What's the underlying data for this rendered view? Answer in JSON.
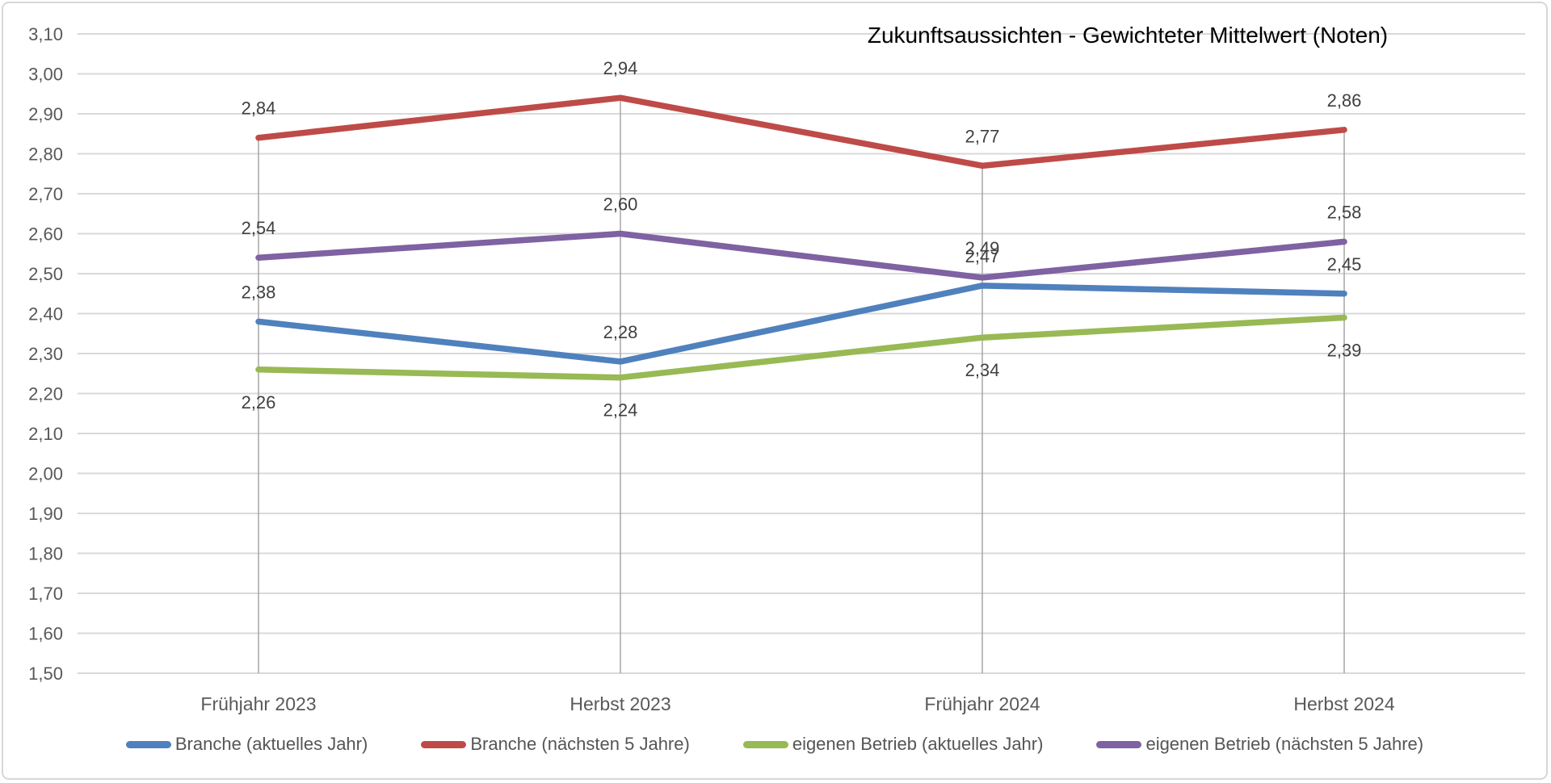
{
  "chart_data": {
    "type": "line",
    "title": "Zukunftsaussichten - Gewichteter Mittelwert (Noten)",
    "categories": [
      "Frühjahr 2023",
      "Herbst 2023",
      "Frühjahr 2024",
      "Herbst 2024"
    ],
    "series": [
      {
        "name": "Branche (aktuelles Jahr)",
        "color": "#4F81BD",
        "values": [
          2.38,
          2.28,
          2.47,
          2.45
        ],
        "labels": [
          "2,38",
          "2,28",
          "2,47",
          "2,45"
        ],
        "label_position": "above"
      },
      {
        "name": "Branche (nächsten 5 Jahre)",
        "color": "#BE4B48",
        "values": [
          2.84,
          2.94,
          2.77,
          2.86
        ],
        "labels": [
          "2,84",
          "2,94",
          "2,77",
          "2,86"
        ],
        "label_position": "above"
      },
      {
        "name": "eigenen Betrieb (aktuelles Jahr)",
        "color": "#98B954",
        "values": [
          2.26,
          2.24,
          2.34,
          2.39
        ],
        "labels": [
          "2,26",
          "2,24",
          "2,34",
          "2,39"
        ],
        "label_position": "below"
      },
      {
        "name": "eigenen Betrieb (nächsten 5 Jahre)",
        "color": "#7E62A1",
        "values": [
          2.54,
          2.6,
          2.49,
          2.58
        ],
        "labels": [
          "2,54",
          "2,60",
          "2,49",
          "2,58"
        ],
        "label_position": "above"
      }
    ],
    "y_axis": {
      "min": 1.5,
      "max": 3.1,
      "step": 0.1,
      "tick_labels": [
        "3,10",
        "3,00",
        "2,90",
        "2,80",
        "2,70",
        "2,60",
        "2,50",
        "2,40",
        "2,30",
        "2,20",
        "2,10",
        "2,00",
        "1,90",
        "1,80",
        "1,70",
        "1,60",
        "1,50"
      ]
    },
    "grid": true,
    "legend_position": "bottom",
    "colors": {
      "gridline": "#D9D9D9",
      "drop_line": "#A6A6A6",
      "axis_text": "#595959",
      "data_label_text": "#404040",
      "title_text": "#000000"
    }
  }
}
